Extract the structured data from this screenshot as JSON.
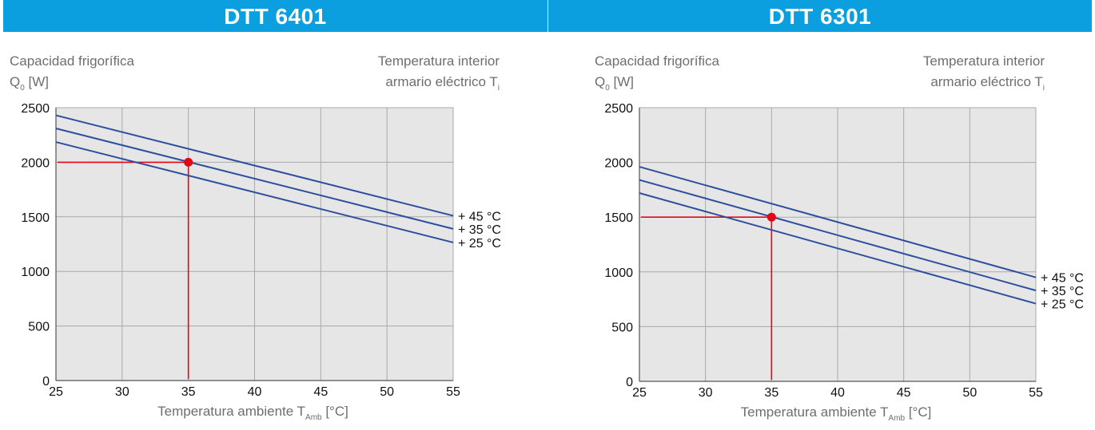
{
  "chart_data": [
    {
      "type": "line",
      "title": "DTT 6401",
      "ylabel_line1": "Capacidad frigorífica",
      "ylabel_line2_main": "Q",
      "ylabel_line2_sub": "0",
      "ylabel_line2_unit": " [W]",
      "legend_title_line1": "Temperatura interior",
      "legend_title_line2_main": "armario eléctrico T",
      "legend_title_line2_sub": "i",
      "xlabel_main": "Temperatura ambiente T",
      "xlabel_sub": "Amb",
      "xlabel_unit": " [°C]",
      "xlim": [
        25,
        55
      ],
      "ylim": [
        0,
        2500
      ],
      "xticks": [
        25,
        30,
        35,
        40,
        45,
        50,
        55
      ],
      "yticks": [
        0,
        500,
        1000,
        1500,
        2000,
        2500
      ],
      "grid": true,
      "series": [
        {
          "name": "+ 45 °C",
          "x": [
            25,
            55
          ],
          "y": [
            2430,
            1510
          ]
        },
        {
          "name": "+ 35 °C",
          "x": [
            25,
            55
          ],
          "y": [
            2310,
            1390
          ]
        },
        {
          "name": "+ 25 °C",
          "x": [
            25,
            55
          ],
          "y": [
            2185,
            1265
          ]
        }
      ],
      "marker": {
        "x": 35,
        "y": 2000
      }
    },
    {
      "type": "line",
      "title": "DTT 6301",
      "ylabel_line1": "Capacidad frigorífica",
      "ylabel_line2_main": "Q",
      "ylabel_line2_sub": "0",
      "ylabel_line2_unit": " [W]",
      "legend_title_line1": "Temperatura interior",
      "legend_title_line2_main": "armario eléctrico T",
      "legend_title_line2_sub": "i",
      "xlabel_main": "Temperatura ambiente T",
      "xlabel_sub": "Amb",
      "xlabel_unit": " [°C]",
      "xlim": [
        25,
        55
      ],
      "ylim": [
        0,
        2500
      ],
      "xticks": [
        25,
        30,
        35,
        40,
        45,
        50,
        55
      ],
      "yticks": [
        0,
        500,
        1000,
        1500,
        2000,
        2500
      ],
      "grid": true,
      "series": [
        {
          "name": "+ 45 °C",
          "x": [
            25,
            55
          ],
          "y": [
            1960,
            950
          ]
        },
        {
          "name": "+ 35 °C",
          "x": [
            25,
            55
          ],
          "y": [
            1840,
            830
          ]
        },
        {
          "name": "+ 25 °C",
          "x": [
            25,
            55
          ],
          "y": [
            1720,
            710
          ]
        }
      ],
      "marker": {
        "x": 35,
        "y": 1500
      }
    }
  ],
  "colors": {
    "banner": "#0b9fe0",
    "plot_bg": "#e6e6e7",
    "grid": "#a7a9ab",
    "series_line": "#2d4f9c",
    "marker": "#e30613",
    "label_grey": "#6d6e70"
  }
}
